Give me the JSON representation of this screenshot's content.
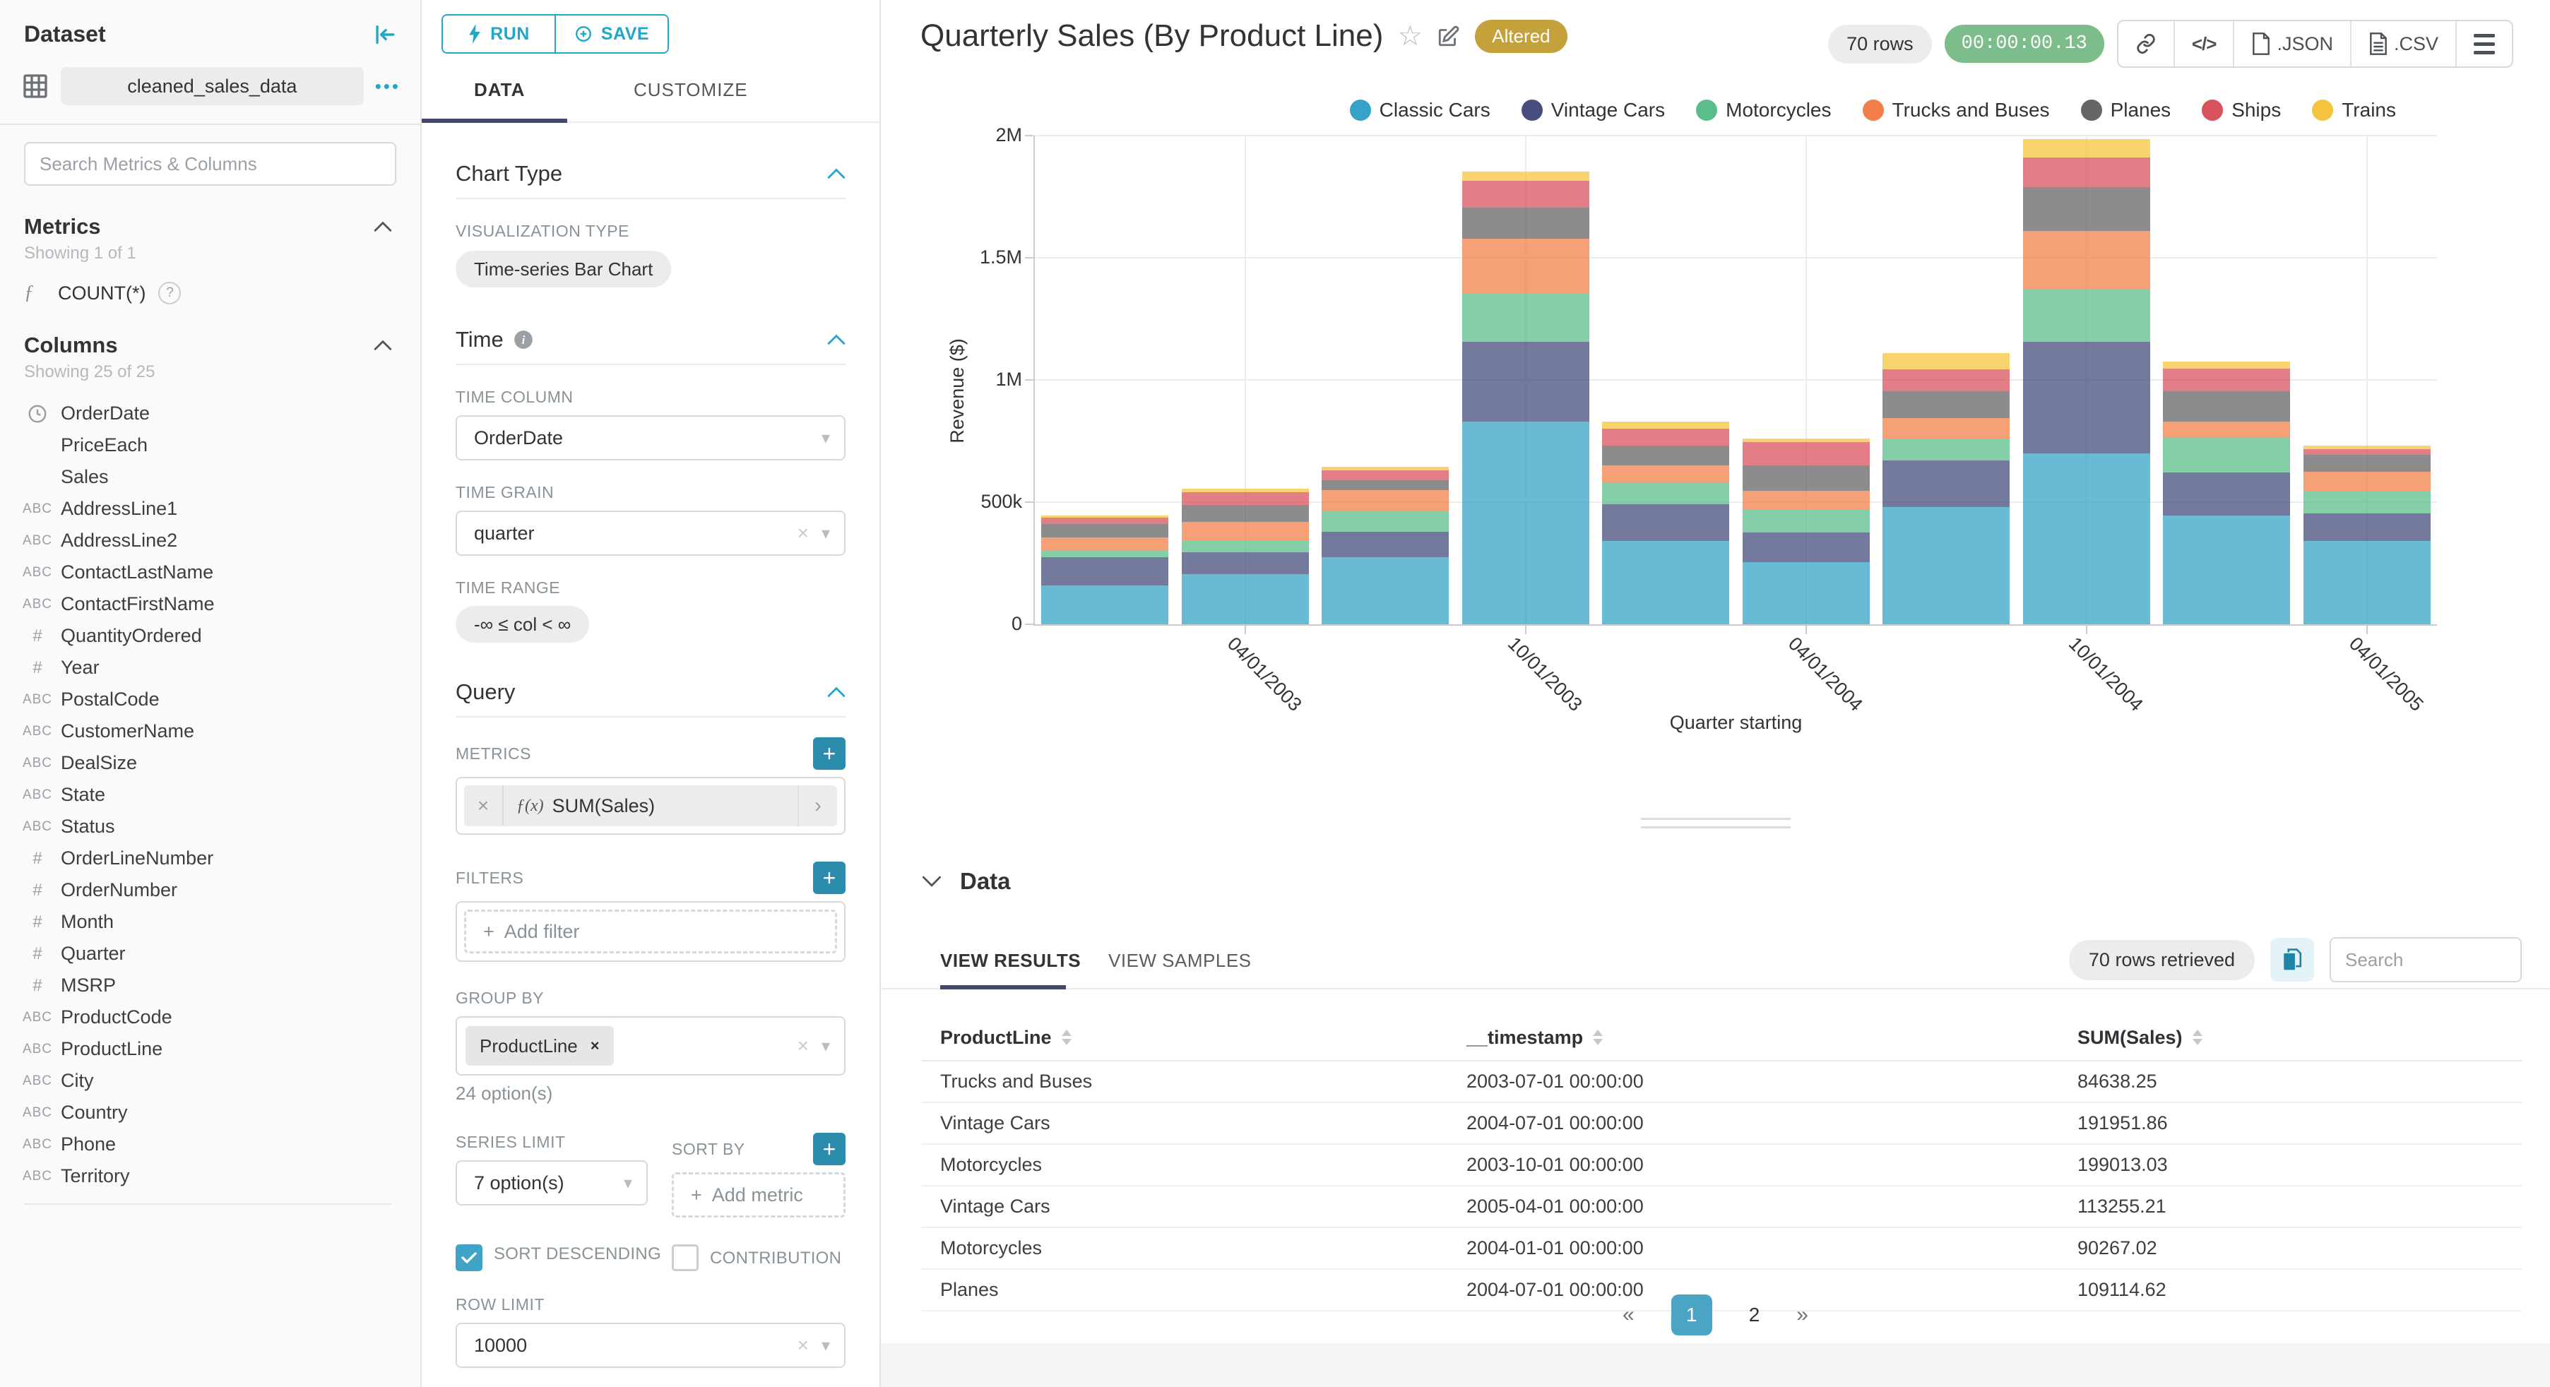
{
  "colors": {
    "primary": "#20A7C9",
    "tab_underline": "#44486b",
    "altered_badge": "#c5a13b",
    "timer_badge": "#7cbd8b",
    "active_page": "#4aa5c4",
    "checkbox_checked": "#41a3c6"
  },
  "sidebar": {
    "title": "Dataset",
    "dataset_name": "cleaned_sales_data",
    "search_placeholder": "Search Metrics & Columns",
    "metrics": {
      "title": "Metrics",
      "showing": "Showing 1 of 1",
      "items": [
        {
          "icon": "function",
          "label": "COUNT(*)"
        }
      ]
    },
    "columns": {
      "title": "Columns",
      "showing": "Showing 25 of 25",
      "items": [
        {
          "icon": "clock",
          "label": "OrderDate"
        },
        {
          "icon": "",
          "label": "PriceEach"
        },
        {
          "icon": "",
          "label": "Sales"
        },
        {
          "icon": "abc",
          "label": "AddressLine1"
        },
        {
          "icon": "abc",
          "label": "AddressLine2"
        },
        {
          "icon": "abc",
          "label": "ContactLastName"
        },
        {
          "icon": "abc",
          "label": "ContactFirstName"
        },
        {
          "icon": "num",
          "label": "QuantityOrdered"
        },
        {
          "icon": "num",
          "label": "Year"
        },
        {
          "icon": "abc",
          "label": "PostalCode"
        },
        {
          "icon": "abc",
          "label": "CustomerName"
        },
        {
          "icon": "abc",
          "label": "DealSize"
        },
        {
          "icon": "abc",
          "label": "State"
        },
        {
          "icon": "abc",
          "label": "Status"
        },
        {
          "icon": "num",
          "label": "OrderLineNumber"
        },
        {
          "icon": "num",
          "label": "OrderNumber"
        },
        {
          "icon": "num",
          "label": "Month"
        },
        {
          "icon": "num",
          "label": "Quarter"
        },
        {
          "icon": "num",
          "label": "MSRP"
        },
        {
          "icon": "abc",
          "label": "ProductCode"
        },
        {
          "icon": "abc",
          "label": "ProductLine"
        },
        {
          "icon": "abc",
          "label": "City"
        },
        {
          "icon": "abc",
          "label": "Country"
        },
        {
          "icon": "abc",
          "label": "Phone"
        },
        {
          "icon": "abc",
          "label": "Territory"
        }
      ]
    }
  },
  "controls": {
    "run_label": "RUN",
    "save_label": "SAVE",
    "tab_data": "DATA",
    "tab_customize": "CUSTOMIZE",
    "chart_type": {
      "title": "Chart Type",
      "viz_label": "VISUALIZATION TYPE",
      "viz_value": "Time-series Bar Chart"
    },
    "time": {
      "title": "Time",
      "column_label": "TIME COLUMN",
      "column_value": "OrderDate",
      "grain_label": "TIME GRAIN",
      "grain_value": "quarter",
      "range_label": "TIME RANGE",
      "range_value": "-∞ ≤ col < ∞"
    },
    "query": {
      "title": "Query",
      "metrics_label": "METRICS",
      "metric_fx": "ƒ(x)",
      "metric_value": "SUM(Sales)",
      "filters_label": "FILTERS",
      "add_filter_label": "Add filter",
      "group_by_label": "GROUP BY",
      "group_by_value": "ProductLine",
      "group_by_hint": "24 option(s)",
      "series_limit_label": "SERIES LIMIT",
      "series_limit_value": "7 option(s)",
      "sort_by_label": "SORT BY",
      "add_metric_label": "Add metric",
      "sort_descending_label": "SORT DESCENDING",
      "contribution_label": "CONTRIBUTION",
      "row_limit_label": "ROW LIMIT",
      "row_limit_value": "10000"
    }
  },
  "header": {
    "title": "Quarterly Sales (By Product Line)",
    "altered_badge": "Altered",
    "rows_badge": "70 rows",
    "timer_badge": "00:00:00.13",
    "code_icon_label": "</>",
    "export_json_label": ".JSON",
    "export_csv_label": ".CSV"
  },
  "chart_data": {
    "type": "bar",
    "stacked": true,
    "title": "Quarterly Sales (By Product Line)",
    "xlabel": "Quarter starting",
    "ylabel": "Revenue ($)",
    "ylim": [
      0,
      2000000
    ],
    "ytick_labels": [
      "0",
      "500k",
      "1M",
      "1.5M",
      "2M"
    ],
    "grid": true,
    "legend_position": "top-right",
    "x": [
      "2003-01-01",
      "2003-04-01",
      "2003-07-01",
      "2003-10-01",
      "2004-01-01",
      "2004-04-01",
      "2004-07-01",
      "2004-10-01",
      "2005-01-01",
      "2005-04-01"
    ],
    "x_tick_labels": [
      {
        "i": 1,
        "label": "04/01/2003"
      },
      {
        "i": 3,
        "label": "10/01/2003"
      },
      {
        "i": 5,
        "label": "04/01/2004"
      },
      {
        "i": 7,
        "label": "10/01/2004"
      },
      {
        "i": 9,
        "label": "04/01/2005"
      }
    ],
    "series": [
      {
        "name": "Classic Cars",
        "color": "#35A3C7",
        "values": [
          160000,
          205000,
          275000,
          830000,
          340000,
          255000,
          480000,
          700000,
          445000,
          340000
        ]
      },
      {
        "name": "Vintage Cars",
        "color": "#454E7C",
        "values": [
          115000,
          90000,
          105000,
          325000,
          150000,
          120000,
          191951.86,
          455000,
          175000,
          113255.21
        ]
      },
      {
        "name": "Motorcycles",
        "color": "#5BBD8B",
        "values": [
          25000,
          50000,
          85000,
          199013.03,
          90267.02,
          95000,
          88000,
          215000,
          145000,
          90000
        ]
      },
      {
        "name": "Trucks and Buses",
        "color": "#F28048",
        "values": [
          55000,
          75000,
          84638.25,
          225000,
          70000,
          75000,
          85000,
          240000,
          65000,
          80000
        ]
      },
      {
        "name": "Planes",
        "color": "#666666",
        "values": [
          55000,
          70000,
          40000,
          125000,
          80000,
          105000,
          109114.62,
          180000,
          125000,
          70000
        ]
      },
      {
        "name": "Ships",
        "color": "#D9535F",
        "values": [
          27000,
          50000,
          40000,
          110000,
          70000,
          95000,
          90000,
          120000,
          90000,
          25000
        ]
      },
      {
        "name": "Trains",
        "color": "#F5C43E",
        "values": [
          8000,
          15000,
          15000,
          40000,
          30000,
          15000,
          65000,
          75000,
          30000,
          12000
        ]
      }
    ]
  },
  "data_panel": {
    "title": "Data",
    "tab_results": "VIEW RESULTS",
    "tab_samples": "VIEW SAMPLES",
    "rows_retrieved": "70 rows retrieved",
    "search_placeholder": "Search",
    "table": {
      "headers": [
        "ProductLine",
        "__timestamp",
        "SUM(Sales)"
      ],
      "rows": [
        [
          "Trucks and Buses",
          "2003-07-01 00:00:00",
          "84638.25"
        ],
        [
          "Vintage Cars",
          "2004-07-01 00:00:00",
          "191951.86"
        ],
        [
          "Motorcycles",
          "2003-10-01 00:00:00",
          "199013.03"
        ],
        [
          "Vintage Cars",
          "2005-04-01 00:00:00",
          "113255.21"
        ],
        [
          "Motorcycles",
          "2004-01-01 00:00:00",
          "90267.02"
        ],
        [
          "Planes",
          "2004-07-01 00:00:00",
          "109114.62"
        ]
      ]
    },
    "pagination": {
      "prev": "«",
      "pages": [
        "1",
        "2"
      ],
      "active": "1",
      "next": "»"
    }
  }
}
